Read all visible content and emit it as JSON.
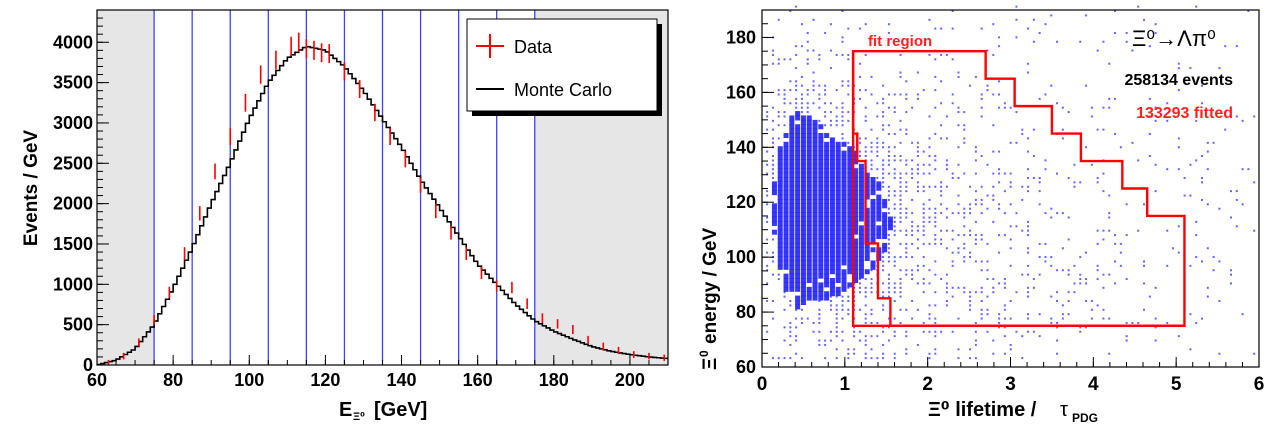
{
  "chart_data": [
    {
      "type": "bar",
      "xlabel_main": "E",
      "xlabel_sub": "Ξ⁰",
      "xlabel_unit": "[GeV]",
      "ylabel": "Events / GeV",
      "xlim": [
        60,
        210
      ],
      "ylim": [
        0,
        4400
      ],
      "x_ticks": [
        "60",
        "80",
        "100",
        "120",
        "140",
        "160",
        "180",
        "200"
      ],
      "y_ticks": [
        "0",
        "500",
        "1000",
        "1500",
        "2000",
        "2500",
        "3000",
        "3500",
        "4000"
      ],
      "shaded_regions": [
        [
          60,
          75
        ],
        [
          175,
          210
        ]
      ],
      "bin_boundaries": [
        75,
        85,
        95,
        105,
        115,
        125,
        135,
        145,
        155,
        165,
        175
      ],
      "legend": {
        "placement": "top-right",
        "entries": [
          "Data",
          "Monte Carlo"
        ]
      },
      "colors": {
        "data": "#ff0000",
        "mc": "#000000",
        "bins": "#4040ff",
        "shade": "#e6e6e6"
      },
      "mc_x": [
        60,
        65,
        70,
        75,
        80,
        85,
        90,
        95,
        100,
        105,
        110,
        115,
        120,
        125,
        130,
        135,
        140,
        145,
        150,
        155,
        160,
        165,
        170,
        175,
        180,
        185,
        190,
        195,
        200,
        205,
        210
      ],
      "mc_y": [
        0,
        60,
        200,
        500,
        950,
        1450,
        2000,
        2500,
        3050,
        3500,
        3800,
        3950,
        3900,
        3700,
        3400,
        3050,
        2700,
        2300,
        1950,
        1600,
        1250,
        1000,
        750,
        550,
        420,
        320,
        230,
        170,
        130,
        100,
        80
      ],
      "data_x": [
        63,
        67,
        71,
        75,
        79,
        83,
        87,
        91,
        95,
        99,
        103,
        107,
        111,
        113,
        115,
        117,
        119,
        121,
        125,
        129,
        133,
        137,
        141,
        145,
        149,
        153,
        157,
        161,
        165,
        169,
        173,
        177,
        181,
        185,
        189,
        193,
        197,
        201,
        205,
        209
      ],
      "data_y": [
        30,
        110,
        280,
        560,
        900,
        1380,
        1880,
        2400,
        2830,
        3250,
        3600,
        3780,
        3950,
        4000,
        3920,
        3900,
        3870,
        3860,
        3640,
        3420,
        3130,
        2830,
        2550,
        2230,
        1910,
        1640,
        1380,
        1140,
        980,
        960,
        760,
        580,
        510,
        440,
        310,
        230,
        180,
        130,
        110,
        90
      ]
    },
    {
      "type": "heatmap",
      "xlabel_main": "Ξ⁰ lifetime / ",
      "xlabel_tau": "τ",
      "xlabel_sub": "PDG",
      "ylabel_main": "energy / GeV",
      "ylabel_sym": "Ξ",
      "ylabel_sup": "0",
      "xlim": [
        0,
        6
      ],
      "ylim": [
        60,
        190
      ],
      "x_ticks": [
        "0",
        "1",
        "2",
        "3",
        "4",
        "5",
        "6"
      ],
      "y_ticks": [
        "60",
        "80",
        "100",
        "120",
        "140",
        "160",
        "180"
      ],
      "annotations": {
        "decay": "Ξ⁰→Λπ⁰",
        "events": "258134 events",
        "fitted": "133293 fitted",
        "fit_region": "fit region"
      },
      "colors": {
        "dense": "#2020ff",
        "sparse": "#3030ff",
        "fit": "#ff0000",
        "fit_label": "#ff2020"
      },
      "fit_region_polygon": [
        [
          1.1,
          75
        ],
        [
          1.1,
          175
        ],
        [
          2.7,
          175
        ],
        [
          2.7,
          165
        ],
        [
          3.05,
          165
        ],
        [
          3.05,
          155
        ],
        [
          3.5,
          155
        ],
        [
          3.5,
          145
        ],
        [
          3.85,
          145
        ],
        [
          3.85,
          135
        ],
        [
          4.35,
          135
        ],
        [
          4.35,
          125
        ],
        [
          4.65,
          125
        ],
        [
          4.65,
          115
        ],
        [
          5.1,
          115
        ],
        [
          5.1,
          75
        ]
      ],
      "lower_cut_steps": [
        [
          1.1,
          175
        ],
        [
          1.1,
          145
        ],
        [
          1.15,
          145
        ],
        [
          1.15,
          135
        ],
        [
          1.25,
          135
        ],
        [
          1.25,
          105
        ],
        [
          1.4,
          105
        ],
        [
          1.4,
          85
        ],
        [
          1.55,
          85
        ],
        [
          1.55,
          75
        ],
        [
          5.1,
          75
        ]
      ]
    }
  ]
}
